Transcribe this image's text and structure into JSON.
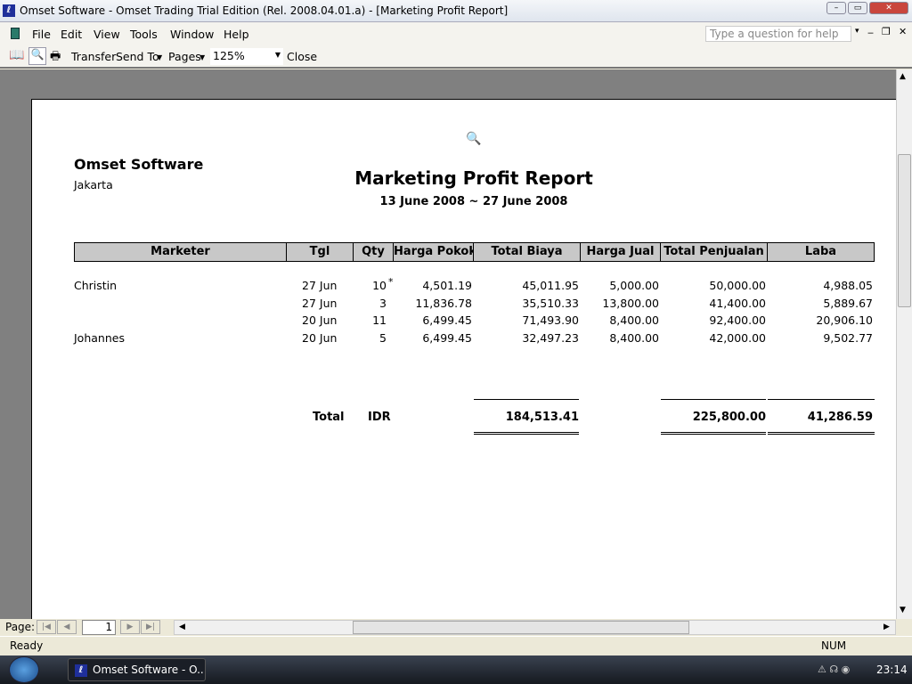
{
  "window": {
    "title": "Omset Software - Omset Trading Trial Edition (Rel. 2008.04.01.a) - [Marketing Profit Report]"
  },
  "menu": [
    "File",
    "Edit",
    "View",
    "Tools",
    "Window",
    "Help"
  ],
  "help_placeholder": "Type a question for help",
  "toolbar": {
    "transfer": "Transfer",
    "send_to": "Send To",
    "pages": "Pages",
    "zoom": "125%",
    "close": "Close"
  },
  "report": {
    "company": "Omset Software",
    "city": "Jakarta",
    "title": "Marketing Profit Report",
    "period": "13 June 2008 ~ 27 June 2008",
    "columns": [
      "Marketer",
      "Tgl",
      "Qty",
      "Harga Pokok",
      "Total Biaya",
      "Harga Jual",
      "Total Penjualan",
      "Laba"
    ],
    "rows": [
      {
        "marketer": "Christin",
        "tgl": "27 Jun",
        "qty": "10",
        "mark": "*",
        "pokok": "4,501.19",
        "biaya": "45,011.95",
        "jual": "5,000.00",
        "penjualan": "50,000.00",
        "laba": "4,988.05"
      },
      {
        "marketer": "",
        "tgl": "27 Jun",
        "qty": "3",
        "mark": "",
        "pokok": "11,836.78",
        "biaya": "35,510.33",
        "jual": "13,800.00",
        "penjualan": "41,400.00",
        "laba": "5,889.67"
      },
      {
        "marketer": "",
        "tgl": "20 Jun",
        "qty": "11",
        "mark": "",
        "pokok": "6,499.45",
        "biaya": "71,493.90",
        "jual": "8,400.00",
        "penjualan": "92,400.00",
        "laba": "20,906.10"
      },
      {
        "marketer": "Johannes",
        "tgl": "20 Jun",
        "qty": "5",
        "mark": "",
        "pokok": "6,499.45",
        "biaya": "32,497.23",
        "jual": "8,400.00",
        "penjualan": "42,000.00",
        "laba": "9,502.77"
      }
    ],
    "total": {
      "label": "Total",
      "currency": "IDR",
      "biaya": "184,513.41",
      "penjualan": "225,800.00",
      "laba": "41,286.59"
    }
  },
  "pagenav": {
    "label": "Page:",
    "page": "1"
  },
  "status": {
    "text": "Ready",
    "num": "NUM"
  },
  "taskbar": {
    "app": "Omset Software - O...",
    "clock": "23:14"
  }
}
